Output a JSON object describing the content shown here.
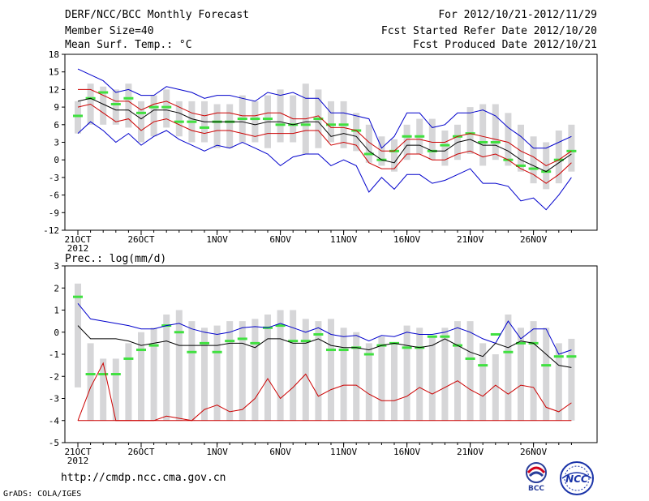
{
  "header": {
    "title": "DERF/NCC/BCC Monthly Forecast",
    "member_size": "Member Size=40",
    "variable": "Mean Surf. Temp.: °C",
    "period": "For 2012/10/21-2012/11/29",
    "started": "Fcst Started Refer Date 2012/10/20",
    "produced": "Fcst Produced Date 2012/10/21"
  },
  "footer": {
    "url": "http://cmdp.ncc.cma.gov.cn",
    "credit": "GrADS: COLA/IGES",
    "logo_bcc": "BCC",
    "logo_ncc": "NCC"
  },
  "colors": {
    "box": "#d6d6d8",
    "median": "#40e040",
    "mean": "#000000",
    "spread": "#cc0000",
    "extreme": "#0000cc"
  },
  "chart_data": [
    {
      "type": "line",
      "title": "Mean Surf. Temp.: °C",
      "ylim": [
        -12,
        18
      ],
      "yticks": [
        -12,
        -9,
        -6,
        -3,
        0,
        3,
        6,
        9,
        12,
        15,
        18
      ],
      "x_ticks": [
        {
          "day": 0,
          "label": "21OCT",
          "sub": "2012"
        },
        {
          "day": 5,
          "label": "26OCT"
        },
        {
          "day": 11,
          "label": "1NOV"
        },
        {
          "day": 16,
          "label": "6NOV"
        },
        {
          "day": 21,
          "label": "11NOV"
        },
        {
          "day": 26,
          "label": "16NOV"
        },
        {
          "day": 31,
          "label": "21NOV"
        },
        {
          "day": 36,
          "label": "26NOV"
        }
      ],
      "days": 40,
      "box_low": [
        4.5,
        6,
        6,
        6,
        5.5,
        3,
        4,
        5.5,
        4,
        3,
        3,
        2,
        2,
        3,
        3,
        2,
        3,
        3,
        1,
        2,
        3,
        2,
        1.5,
        -0.5,
        -1,
        -2,
        0,
        1,
        0,
        -1,
        0,
        1,
        -1,
        0,
        -1,
        -2,
        -4,
        -5,
        -4,
        -2
      ],
      "box_high": [
        10,
        13,
        12.5,
        12,
        13,
        10,
        11,
        12,
        10,
        10,
        10,
        9.5,
        9.5,
        11,
        10,
        11,
        12,
        11,
        13,
        12,
        10,
        10,
        8,
        6,
        4,
        3.5,
        6,
        7,
        7,
        5,
        6,
        9,
        9.5,
        9.5,
        8,
        6,
        4,
        3,
        5,
        6
      ],
      "median": [
        7.5,
        10.5,
        11.5,
        9.5,
        10.5,
        8,
        9,
        9,
        6.5,
        6.5,
        5.5,
        6.5,
        6.5,
        7,
        7,
        7,
        6,
        6,
        6,
        7,
        6,
        6,
        5,
        1,
        0,
        1.5,
        4,
        4,
        1.5,
        2.5,
        4,
        4.5,
        3,
        3,
        0,
        -1,
        -1.5,
        -2,
        0,
        1.5
      ],
      "series": [
        {
          "name": "max",
          "color": "#0000cc",
          "values": [
            15.5,
            14.5,
            13.5,
            11.5,
            12,
            11,
            11,
            12.5,
            12,
            11.5,
            10.5,
            11,
            11,
            10.5,
            10,
            11.5,
            11,
            11.5,
            10.5,
            10.5,
            8,
            8,
            7.5,
            7,
            2,
            4,
            8,
            8,
            5.5,
            6,
            8,
            8,
            8.5,
            7.5,
            5.5,
            4,
            2,
            2,
            3,
            4
          ]
        },
        {
          "name": "mean+sd",
          "color": "#cc0000",
          "values": [
            12,
            12,
            11,
            10,
            10,
            8.5,
            9.5,
            10,
            9,
            8,
            7.5,
            8,
            8,
            7.5,
            7.5,
            8,
            8,
            7,
            7,
            7.5,
            5.5,
            5.5,
            5,
            3,
            1.5,
            1.5,
            3.5,
            3.5,
            3,
            3,
            4,
            4.5,
            4,
            3.5,
            3,
            1.5,
            0.5,
            -1,
            0,
            1.5
          ]
        },
        {
          "name": "mean",
          "color": "#000000",
          "values": [
            10,
            10.5,
            9.5,
            8.5,
            8.5,
            7,
            8.5,
            8.5,
            8,
            7,
            6.5,
            6.5,
            6.5,
            6.5,
            6,
            6.5,
            6.5,
            6,
            6.5,
            6.5,
            4,
            4.5,
            4,
            1.5,
            0,
            -0.5,
            2.5,
            2.5,
            1.5,
            1.5,
            3,
            3.5,
            2.5,
            2.5,
            1.5,
            0,
            -1,
            -2,
            -0.5,
            1
          ]
        },
        {
          "name": "mean-sd",
          "color": "#cc0000",
          "values": [
            9,
            9.5,
            8,
            6.5,
            7,
            5,
            6.5,
            7,
            6,
            5,
            4.5,
            5,
            5,
            4.5,
            4,
            4.5,
            4.5,
            4.5,
            5,
            5,
            2.5,
            3,
            2.5,
            -0.5,
            -1.5,
            -1.5,
            1,
            1,
            0,
            0,
            1,
            1.5,
            0.5,
            1,
            0,
            -1.5,
            -2.5,
            -4,
            -2.5,
            -0.5
          ]
        },
        {
          "name": "min",
          "color": "#0000cc",
          "values": [
            4.5,
            6.5,
            5,
            3,
            4.5,
            2.5,
            4,
            5,
            3.5,
            2.5,
            1.5,
            2.5,
            2,
            3,
            2,
            1,
            -1,
            0.5,
            1,
            1,
            -1,
            0,
            -1,
            -5.5,
            -3,
            -5,
            -2.5,
            -2.5,
            -4,
            -3.5,
            -2.5,
            -1.5,
            -4,
            -4,
            -4.5,
            -7,
            -6.5,
            -8.5,
            -6,
            -3
          ]
        }
      ]
    },
    {
      "type": "line",
      "title": "Prec.: log(mm/d)",
      "ylim": [
        -5,
        3
      ],
      "yticks": [
        -5,
        -4,
        -3,
        -2,
        -1,
        0,
        1,
        2,
        3
      ],
      "x_ticks": [
        {
          "day": 0,
          "label": "21OCT",
          "sub": "2012"
        },
        {
          "day": 5,
          "label": "26OCT"
        },
        {
          "day": 11,
          "label": "1NOV"
        },
        {
          "day": 16,
          "label": "6NOV"
        },
        {
          "day": 21,
          "label": "11NOV"
        },
        {
          "day": 26,
          "label": "16NOV"
        },
        {
          "day": 31,
          "label": "21NOV"
        },
        {
          "day": 36,
          "label": "26NOV"
        }
      ],
      "days": 40,
      "box_low": [
        -2.5,
        -4,
        -4,
        -4,
        -4,
        -4,
        -4,
        -4,
        -4,
        -4,
        -4,
        -4,
        -4,
        -4,
        -4,
        -4,
        -4,
        -4,
        -4,
        -4,
        -4,
        -4,
        -4,
        -4,
        -4,
        -4,
        -4,
        -4,
        -4,
        -4,
        -4,
        -4,
        -4,
        -4,
        -4,
        -4,
        -4,
        -4,
        -4,
        -4
      ],
      "box_high": [
        2.2,
        -0.5,
        -1.2,
        -1.2,
        -0.5,
        0,
        0.2,
        0.8,
        1,
        0.5,
        0.2,
        0.3,
        0.5,
        0.5,
        0.6,
        0.8,
        1,
        1,
        0.6,
        0.5,
        0.6,
        0.2,
        0,
        -0.5,
        -0.2,
        -0.5,
        0.3,
        0.2,
        -0.2,
        0.2,
        0.5,
        0.5,
        -0.5,
        -1,
        0.8,
        0.2,
        0.5,
        0.2,
        -0.5,
        -0.3
      ],
      "median": [
        1.6,
        -1.9,
        -1.9,
        -1.9,
        -1.2,
        -0.8,
        -0.6,
        0.3,
        0,
        -0.9,
        -0.5,
        -0.9,
        -0.4,
        -0.3,
        -0.5,
        0.2,
        0.3,
        -0.4,
        -0.4,
        -0.1,
        -0.8,
        -0.8,
        -0.7,
        -1,
        -0.6,
        -0.5,
        -0.7,
        -0.7,
        -0.2,
        -0.2,
        -0.6,
        -1.2,
        -1.5,
        -0.1,
        -0.9,
        -0.5,
        -0.5,
        -1.5,
        -1.1,
        -1.1
      ],
      "series": [
        {
          "name": "max",
          "color": "#0000cc",
          "values": [
            1.3,
            0.6,
            0.5,
            0.4,
            0.3,
            0.15,
            0.15,
            0.3,
            0.4,
            0.15,
            0,
            -0.1,
            0,
            0.2,
            0.25,
            0.2,
            0.4,
            0.2,
            0,
            0.2,
            -0.1,
            -0.2,
            -0.15,
            -0.4,
            -0.15,
            -0.2,
            0,
            -0.1,
            -0.1,
            0,
            0.2,
            0,
            -0.3,
            -0.5,
            0.5,
            -0.3,
            0.15,
            0.15,
            -1,
            -0.8
          ]
        },
        {
          "name": "mean",
          "color": "#000000",
          "values": [
            0.3,
            -0.3,
            -0.3,
            -0.3,
            -0.4,
            -0.6,
            -0.5,
            -0.4,
            -0.6,
            -0.6,
            -0.6,
            -0.6,
            -0.5,
            -0.5,
            -0.7,
            -0.3,
            -0.3,
            -0.5,
            -0.5,
            -0.3,
            -0.6,
            -0.7,
            -0.7,
            -0.8,
            -0.6,
            -0.5,
            -0.6,
            -0.7,
            -0.6,
            -0.3,
            -0.6,
            -0.9,
            -1.1,
            -0.5,
            -0.7,
            -0.4,
            -0.5,
            -1.0,
            -1.5,
            -1.6
          ]
        },
        {
          "name": "mean-sd",
          "color": "#cc0000",
          "values": [
            -4,
            -2.5,
            -1.4,
            -4,
            -4,
            -4,
            -4,
            -3.8,
            -3.9,
            -4,
            -3.5,
            -3.3,
            -3.6,
            -3.5,
            -3,
            -2.1,
            -3,
            -2.5,
            -1.9,
            -2.9,
            -2.6,
            -2.4,
            -2.4,
            -2.8,
            -3.1,
            -3.1,
            -2.9,
            -2.5,
            -2.8,
            -2.5,
            -2.2,
            -2.6,
            -2.9,
            -2.4,
            -2.8,
            -2.4,
            -2.5,
            -3.4,
            -3.6,
            -3.2
          ]
        },
        {
          "name": "floor",
          "color": "#cc0000",
          "values": [
            -4,
            -4,
            -4,
            -4,
            -4,
            -4,
            -4,
            -4,
            -4,
            -4,
            -4,
            -4,
            -4,
            -4,
            -4,
            -4,
            -4,
            -4,
            -4,
            -4,
            -4,
            -4,
            -4,
            -4,
            -4,
            -4,
            -4,
            -4,
            -4,
            -4,
            -4,
            -4,
            -4,
            -4,
            -4,
            -4,
            -4,
            -4,
            -4,
            -4
          ]
        }
      ]
    }
  ]
}
